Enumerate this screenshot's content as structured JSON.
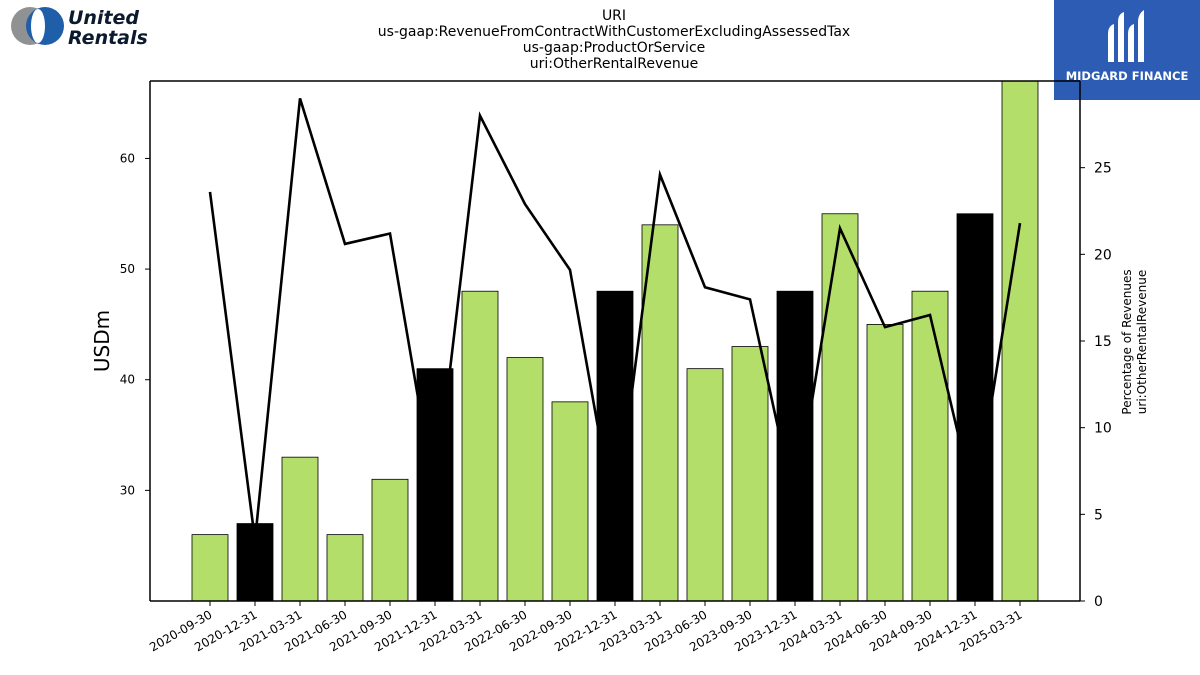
{
  "header": {
    "company_logo_text": [
      "United",
      "Rentals"
    ],
    "watermark_text": "MIDGARD FINANCE"
  },
  "chart_data": {
    "type": "bar",
    "title": [
      "URI",
      "us-gaap:RevenueFromContractWithCustomerExcludingAssessedTax",
      "us-gaap:ProductOrService",
      "uri:OtherRentalRevenue"
    ],
    "ylabel": "USDm",
    "ylabel_right": [
      "Percentage of Revenues",
      "uri:OtherRentalRevenue"
    ],
    "categories": [
      "2020-09-30",
      "2020-12-31",
      "2021-03-31",
      "2021-06-30",
      "2021-09-30",
      "2021-12-31",
      "2022-03-31",
      "2022-06-30",
      "2022-09-30",
      "2022-12-31",
      "2023-03-31",
      "2023-06-30",
      "2023-09-30",
      "2023-12-31",
      "2024-03-31",
      "2024-06-30",
      "2024-09-30",
      "2024-12-31",
      "2025-03-31"
    ],
    "series": [
      {
        "kind": "bar",
        "axis": "left",
        "values": [
          26,
          27,
          33,
          26,
          31,
          41,
          48,
          42,
          38,
          48,
          54,
          41,
          43,
          48,
          55,
          45,
          48,
          55,
          67
        ],
        "colors": [
          "#b3de69",
          "#000000",
          "#b3de69",
          "#b3de69",
          "#b3de69",
          "#000000",
          "#b3de69",
          "#b3de69",
          "#b3de69",
          "#000000",
          "#b3de69",
          "#b3de69",
          "#b3de69",
          "#000000",
          "#b3de69",
          "#b3de69",
          "#b3de69",
          "#000000",
          "#b3de69"
        ]
      },
      {
        "kind": "line",
        "axis": "right",
        "color": "#000000",
        "values": [
          23.6,
          3.5,
          29.0,
          20.6,
          21.2,
          6.0,
          28.0,
          22.9,
          19.1,
          4.5,
          24.6,
          18.1,
          17.4,
          5.5,
          21.5,
          15.8,
          16.5,
          5.5,
          21.8
        ]
      }
    ],
    "ylim": [
      20,
      67
    ],
    "yticks": [
      30,
      40,
      50,
      60
    ],
    "ylim_right": [
      0,
      30
    ],
    "yticks_right": [
      0,
      5,
      10,
      15,
      20,
      25
    ],
    "grid": false
  }
}
